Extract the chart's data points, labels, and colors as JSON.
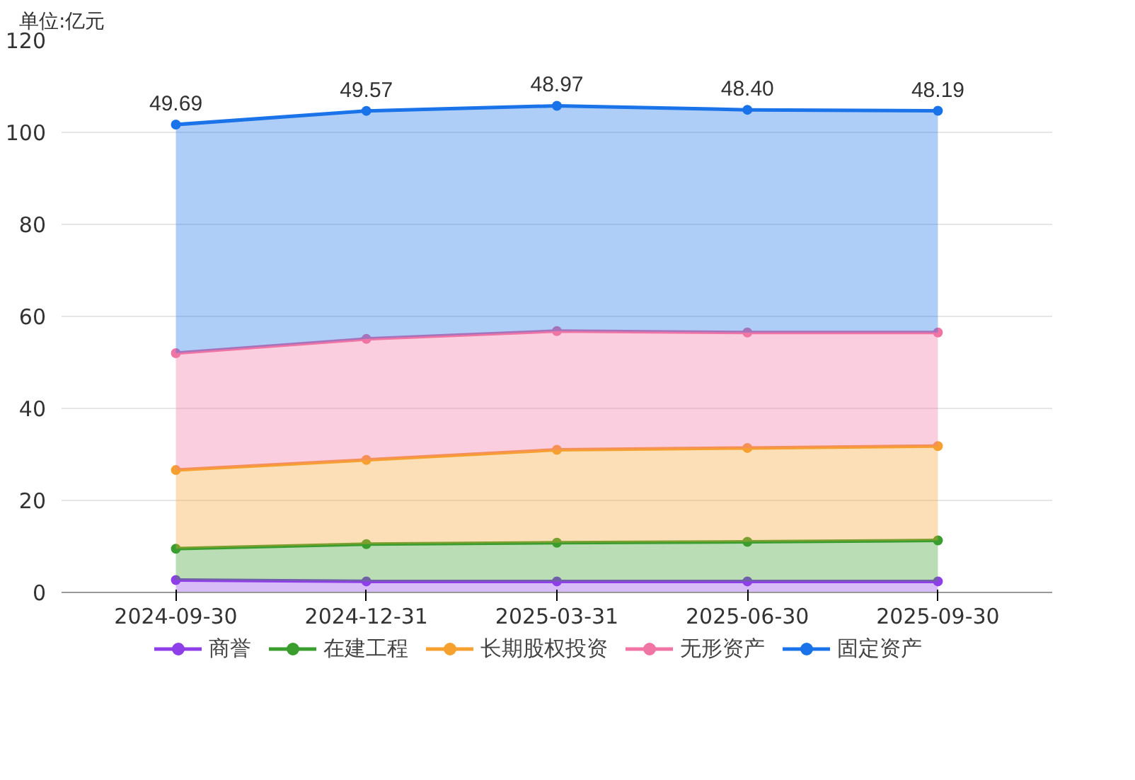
{
  "chart_data": {
    "type": "area",
    "stacked": true,
    "ylabel": "单位:亿元",
    "categories": [
      "2024-09-30",
      "2024-12-31",
      "2025-03-31",
      "2025-06-30",
      "2025-09-30"
    ],
    "ylim": [
      0,
      120
    ],
    "yticks": [
      0,
      20,
      40,
      60,
      80,
      100,
      120
    ],
    "grid": "y",
    "legend": "bottom",
    "marker": "circle",
    "line_style": "solid",
    "series": [
      {
        "name": "商誉",
        "color": "#8e3fe8",
        "values": [
          2.7,
          2.4,
          2.4,
          2.4,
          2.4
        ]
      },
      {
        "name": "在建工程",
        "color": "#3a9e2f",
        "values": [
          6.8,
          8.1,
          8.4,
          8.6,
          8.9
        ]
      },
      {
        "name": "长期股权投资",
        "color": "#f6a030",
        "values": [
          17.1,
          18.3,
          20.2,
          20.4,
          20.5
        ]
      },
      {
        "name": "无形资产",
        "color": "#f074a4",
        "values": [
          25.4,
          26.3,
          25.8,
          25.1,
          24.7
        ]
      },
      {
        "name": "固定资产",
        "color": "#1a73e8",
        "values": [
          49.69,
          49.57,
          48.97,
          48.4,
          48.19
        ],
        "value_labels": [
          "49.69",
          "49.57",
          "48.97",
          "48.40",
          "48.19"
        ]
      }
    ]
  }
}
